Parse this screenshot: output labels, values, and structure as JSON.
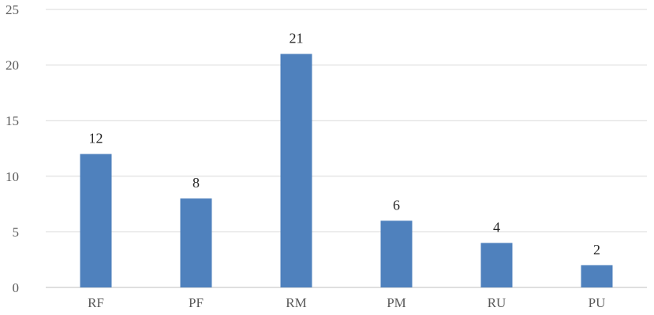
{
  "chart_data": {
    "type": "bar",
    "categories": [
      "RF",
      "PF",
      "RM",
      "PM",
      "RU",
      "PU"
    ],
    "values": [
      12,
      8,
      21,
      6,
      4,
      2
    ],
    "data_labels": [
      "12",
      "8",
      "21",
      "6",
      "4",
      "2"
    ],
    "title": "",
    "xlabel": "",
    "ylabel": "",
    "ylim": [
      0,
      25
    ],
    "yticks": [
      0,
      5,
      10,
      15,
      20,
      25
    ],
    "ytick_labels": [
      "0",
      "5",
      "10",
      "15",
      "20",
      "25"
    ],
    "grid": true,
    "legend": "none",
    "bar_color": "#4f81bd",
    "grid_color": "#d9d9d9"
  }
}
